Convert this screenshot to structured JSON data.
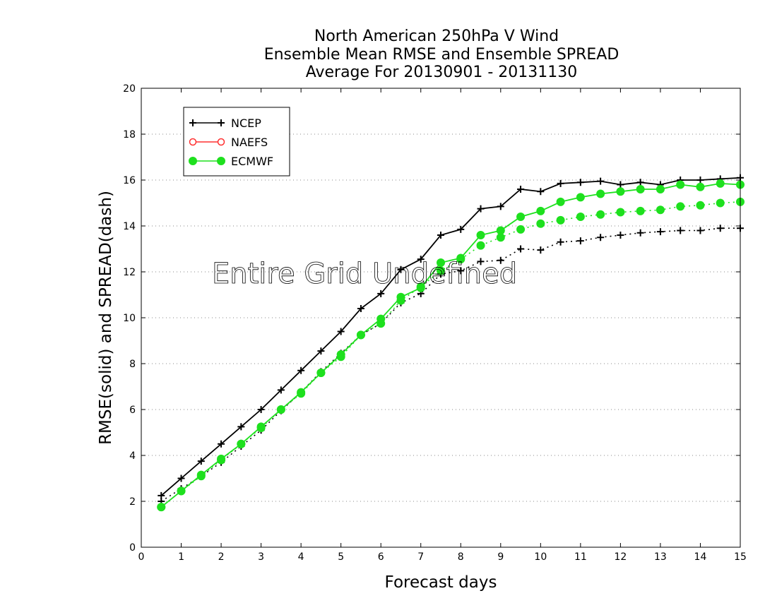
{
  "chart_data": {
    "type": "line",
    "title_lines": [
      "North American 250hPa V Wind",
      "Ensemble Mean RMSE and Ensemble SPREAD",
      "Average For 20130901 - 20131130"
    ],
    "xlabel": "Forecast days",
    "ylabel": "RMSE(solid) and SPREAD(dash)",
    "xlim": [
      0,
      15
    ],
    "ylim": [
      0,
      20
    ],
    "xticks": [
      0,
      1,
      2,
      3,
      4,
      5,
      6,
      7,
      8,
      9,
      10,
      11,
      12,
      13,
      14,
      15
    ],
    "yticks": [
      0,
      2,
      4,
      6,
      8,
      10,
      12,
      14,
      16,
      18,
      20
    ],
    "grid": "horizontal dotted",
    "legend_position": "upper-left",
    "annotation": "Entire Grid Undefined",
    "x": [
      0.5,
      1,
      1.5,
      2,
      2.5,
      3,
      3.5,
      4,
      4.5,
      5,
      5.5,
      6,
      6.5,
      7,
      7.5,
      8,
      8.5,
      9,
      9.5,
      10,
      10.5,
      11,
      11.5,
      12,
      12.5,
      13,
      13.5,
      14,
      14.5,
      15
    ],
    "series": [
      {
        "name": "NCEP",
        "color": "#000000",
        "marker": "plus",
        "rmse": [
          2.25,
          3.0,
          3.75,
          4.5,
          5.25,
          6.0,
          6.85,
          7.7,
          8.55,
          9.4,
          10.4,
          11.05,
          12.1,
          12.55,
          13.6,
          13.85,
          14.75,
          14.85,
          15.6,
          15.5,
          15.85,
          15.9,
          15.95,
          15.8,
          15.9,
          15.8,
          16.0,
          16.0,
          16.05,
          16.1
        ],
        "spread": [
          2.0,
          2.55,
          3.1,
          3.7,
          4.4,
          5.1,
          5.95,
          6.75,
          7.65,
          8.45,
          9.25,
          9.75,
          10.65,
          11.05,
          11.9,
          12.05,
          12.45,
          12.5,
          13.0,
          12.95,
          13.3,
          13.35,
          13.5,
          13.6,
          13.7,
          13.75,
          13.8,
          13.8,
          13.9,
          13.9
        ]
      },
      {
        "name": "NAEFS",
        "color": "#ff3030",
        "marker": "open-circle",
        "rmse": [],
        "spread": []
      },
      {
        "name": "ECMWF",
        "color": "#1ee01e",
        "marker": "filled-circle",
        "rmse": [
          1.75,
          2.45,
          3.15,
          3.85,
          4.5,
          5.25,
          6.0,
          6.75,
          7.6,
          8.4,
          9.25,
          9.95,
          10.9,
          11.3,
          12.4,
          12.6,
          13.6,
          13.8,
          14.4,
          14.65,
          15.05,
          15.25,
          15.4,
          15.5,
          15.6,
          15.6,
          15.8,
          15.7,
          15.85,
          15.8
        ],
        "spread": [
          1.75,
          2.45,
          3.1,
          3.8,
          4.5,
          5.2,
          6.0,
          6.7,
          7.6,
          8.3,
          9.25,
          9.75,
          10.75,
          11.35,
          12.05,
          12.55,
          13.15,
          13.5,
          13.85,
          14.1,
          14.25,
          14.4,
          14.5,
          14.6,
          14.65,
          14.7,
          14.85,
          14.9,
          15.0,
          15.05
        ]
      }
    ]
  }
}
